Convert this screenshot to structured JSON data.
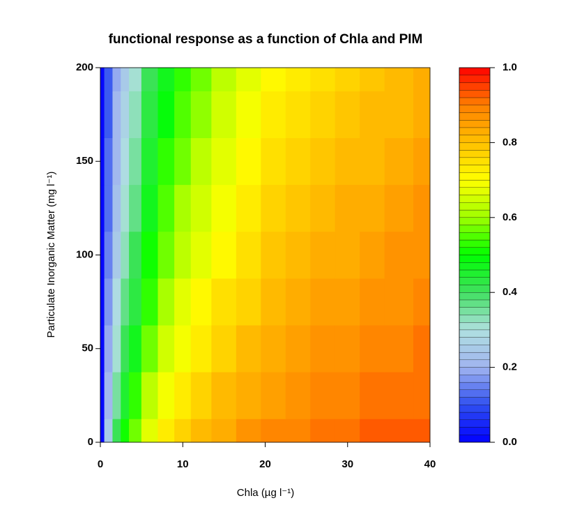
{
  "chart_data": {
    "type": "filled-contour",
    "title": "functional response as a function of Chla and PIM",
    "xlabel": "Chla (µg l⁻¹)",
    "ylabel": "Particulate Inorganic Matter (mg l⁻¹)",
    "xlim": [
      0,
      40
    ],
    "xticks": [
      0,
      10,
      20,
      30,
      40
    ],
    "ylim": [
      0,
      200
    ],
    "yticks": [
      0,
      50,
      100,
      150,
      200
    ],
    "zlim": [
      0,
      1
    ],
    "zticks": [
      {
        "value": 0,
        "label": "0.0"
      },
      {
        "value": 0.2,
        "label": "0.2"
      },
      {
        "value": 0.4,
        "label": "0.4"
      },
      {
        "value": 0.6,
        "label": "0.6"
      },
      {
        "value": 0.8,
        "label": "0.8"
      },
      {
        "value": 1,
        "label": "1.0"
      }
    ],
    "level_step": 0.02,
    "palette": [
      "#0000ff",
      "#3050f0",
      "#a0b4f0",
      "#b0e0e0",
      "#40e060",
      "#00ff00",
      "#a0ff00",
      "#ffff00",
      "#ffc000",
      "#ff8000",
      "#ff0000"
    ],
    "x": [
      0,
      1,
      2,
      3,
      4,
      6,
      8,
      10,
      12,
      15,
      18,
      21,
      24,
      27,
      30,
      33,
      36,
      40
    ],
    "y": [
      0,
      25,
      50,
      75,
      100,
      125,
      150,
      175,
      200
    ],
    "z": [
      [
        0,
        0.25,
        0.4,
        0.5,
        0.57,
        0.67,
        0.73,
        0.77,
        0.8,
        0.83,
        0.86,
        0.88,
        0.89,
        0.9,
        0.91,
        0.92,
        0.92,
        0.93
      ],
      [
        0,
        0.21,
        0.35,
        0.44,
        0.52,
        0.62,
        0.68,
        0.73,
        0.76,
        0.8,
        0.83,
        0.85,
        0.86,
        0.88,
        0.89,
        0.9,
        0.91,
        0.91
      ],
      [
        0,
        0.18,
        0.31,
        0.4,
        0.47,
        0.57,
        0.64,
        0.69,
        0.73,
        0.77,
        0.8,
        0.82,
        0.84,
        0.86,
        0.87,
        0.88,
        0.89,
        0.9
      ],
      [
        0,
        0.16,
        0.28,
        0.36,
        0.43,
        0.53,
        0.6,
        0.66,
        0.7,
        0.74,
        0.77,
        0.8,
        0.82,
        0.84,
        0.85,
        0.86,
        0.87,
        0.88
      ],
      [
        0,
        0.14,
        0.25,
        0.33,
        0.4,
        0.5,
        0.57,
        0.63,
        0.67,
        0.71,
        0.75,
        0.78,
        0.8,
        0.82,
        0.83,
        0.85,
        0.86,
        0.87
      ],
      [
        0,
        0.13,
        0.23,
        0.31,
        0.37,
        0.47,
        0.54,
        0.6,
        0.64,
        0.69,
        0.73,
        0.76,
        0.78,
        0.8,
        0.82,
        0.83,
        0.84,
        0.86
      ],
      [
        0,
        0.12,
        0.21,
        0.29,
        0.35,
        0.44,
        0.52,
        0.57,
        0.62,
        0.67,
        0.71,
        0.74,
        0.76,
        0.78,
        0.8,
        0.81,
        0.83,
        0.84
      ],
      [
        0,
        0.11,
        0.2,
        0.27,
        0.33,
        0.42,
        0.49,
        0.55,
        0.59,
        0.65,
        0.69,
        0.72,
        0.74,
        0.77,
        0.78,
        0.8,
        0.81,
        0.83
      ],
      [
        0,
        0.1,
        0.18,
        0.25,
        0.31,
        0.4,
        0.47,
        0.53,
        0.57,
        0.63,
        0.67,
        0.7,
        0.73,
        0.75,
        0.77,
        0.79,
        0.8,
        0.82
      ]
    ]
  }
}
